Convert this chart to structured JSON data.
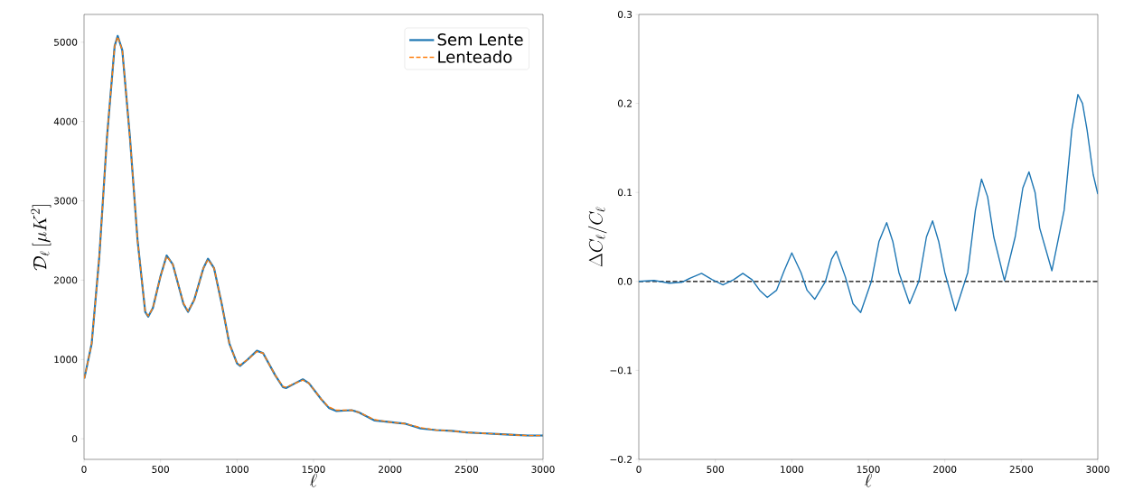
{
  "chart_data": [
    {
      "type": "line",
      "xlabel": "\\ell",
      "ylabel": "\\mathcal{D}_\\ell\\,[\\mu K^2]",
      "xlim": [
        0,
        3000
      ],
      "ylim": [
        -260,
        5350
      ],
      "xticks": [
        0,
        500,
        1000,
        1500,
        2000,
        2500,
        3000
      ],
      "yticks": [
        0,
        1000,
        2000,
        3000,
        4000,
        5000
      ],
      "legend": "top right",
      "grid": false,
      "series": [
        {
          "name": "Sem Lente",
          "color": "#1f77b4",
          "line_style": "solid",
          "x": [
            2,
            50,
            100,
            150,
            200,
            220,
            250,
            300,
            350,
            400,
            420,
            450,
            500,
            540,
            580,
            650,
            680,
            720,
            780,
            810,
            850,
            900,
            950,
            1000,
            1020,
            1070,
            1130,
            1170,
            1250,
            1300,
            1320,
            1380,
            1430,
            1470,
            1550,
            1600,
            1650,
            1750,
            1800,
            1900,
            2000,
            2050,
            2100,
            2200,
            2300,
            2400,
            2500,
            2600,
            2700,
            2800,
            2900,
            3000
          ],
          "values": [
            760,
            1200,
            2300,
            3800,
            4950,
            5080,
            4900,
            3800,
            2500,
            1600,
            1540,
            1650,
            2050,
            2310,
            2200,
            1700,
            1600,
            1750,
            2150,
            2270,
            2150,
            1700,
            1200,
            950,
            920,
            1000,
            1110,
            1080,
            800,
            650,
            640,
            700,
            750,
            700,
            500,
            390,
            350,
            360,
            330,
            230,
            210,
            200,
            190,
            130,
            110,
            100,
            80,
            70,
            60,
            50,
            40,
            40
          ]
        },
        {
          "name": "Lenteado",
          "color": "#ff7f0e",
          "line_style": "dashed",
          "x": [
            2,
            50,
            100,
            150,
            200,
            220,
            250,
            300,
            350,
            400,
            420,
            450,
            500,
            540,
            580,
            650,
            680,
            720,
            780,
            810,
            850,
            900,
            950,
            1000,
            1020,
            1070,
            1130,
            1170,
            1250,
            1300,
            1320,
            1380,
            1430,
            1470,
            1550,
            1600,
            1650,
            1750,
            1800,
            1900,
            2000,
            2050,
            2100,
            2200,
            2300,
            2400,
            2500,
            2600,
            2700,
            2800,
            2900,
            3000
          ],
          "values": [
            760,
            1200,
            2300,
            3800,
            4950,
            5070,
            4900,
            3800,
            2500,
            1600,
            1550,
            1650,
            2050,
            2300,
            2200,
            1710,
            1610,
            1750,
            2150,
            2260,
            2150,
            1700,
            1200,
            950,
            930,
            1000,
            1100,
            1080,
            800,
            660,
            650,
            700,
            740,
            700,
            500,
            400,
            360,
            360,
            330,
            240,
            210,
            200,
            190,
            140,
            110,
            100,
            80,
            70,
            60,
            50,
            40,
            40
          ]
        }
      ]
    },
    {
      "type": "line",
      "xlabel": "\\ell",
      "ylabel": "\\Delta C_\\ell/C_\\ell",
      "xlim": [
        0,
        3000
      ],
      "ylim": [
        -0.2,
        0.3
      ],
      "xticks": [
        0,
        500,
        1000,
        1500,
        2000,
        2500,
        3000
      ],
      "yticks": [
        {
          "value": -0.2,
          "label": "−0.2"
        },
        {
          "value": -0.1,
          "label": "−0.1"
        },
        {
          "value": 0,
          "label": "0.0"
        },
        0.1,
        0.2,
        0.3
      ],
      "grid": false,
      "ref_lines": [
        {
          "axis": "y",
          "value": 0,
          "color": "#000000",
          "line_style": "dashed"
        }
      ],
      "series": [
        {
          "color": "#1f77b4",
          "line_style": "solid",
          "x": [
            0,
            100,
            200,
            280,
            340,
            410,
            480,
            550,
            620,
            680,
            740,
            790,
            840,
            900,
            950,
            1000,
            1060,
            1100,
            1150,
            1220,
            1260,
            1290,
            1350,
            1400,
            1450,
            1520,
            1570,
            1620,
            1660,
            1700,
            1770,
            1830,
            1880,
            1920,
            1960,
            2000,
            2070,
            2150,
            2200,
            2240,
            2280,
            2320,
            2390,
            2460,
            2510,
            2550,
            2590,
            2620,
            2700,
            2780,
            2830,
            2870,
            2900,
            2930,
            2970,
            3000
          ],
          "values": [
            0,
            0.001,
            -0.002,
            -0.001,
            0.004,
            0.009,
            0.002,
            -0.004,
            0.002,
            0.009,
            0.002,
            -0.01,
            -0.018,
            -0.01,
            0.012,
            0.032,
            0.01,
            -0.01,
            -0.02,
            0.0,
            0.025,
            0.034,
            0.005,
            -0.025,
            -0.035,
            0.0,
            0.045,
            0.066,
            0.045,
            0.01,
            -0.025,
            0.0,
            0.05,
            0.068,
            0.045,
            0.01,
            -0.033,
            0.01,
            0.08,
            0.115,
            0.095,
            0.05,
            0.001,
            0.05,
            0.105,
            0.123,
            0.1,
            0.06,
            0.012,
            0.08,
            0.17,
            0.21,
            0.2,
            0.17,
            0.12,
            0.098
          ]
        }
      ]
    }
  ]
}
